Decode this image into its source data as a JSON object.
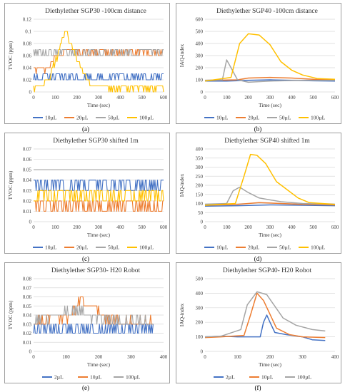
{
  "colors": {
    "blue": "#4472C4",
    "orange": "#ED7D31",
    "gray": "#A5A5A5",
    "yellow": "#FFC000",
    "grid": "#d9d9d9"
  },
  "captions": [
    "(a)",
    "(b)",
    "(c)",
    "(d)",
    "(e)",
    "(f)"
  ],
  "chart_data": [
    {
      "type": "line",
      "title": "Diethylether SGP30 -100cm distance",
      "xlabel": "Time (sec)",
      "ylabel": "TVOC (ppm)",
      "xlim": [
        0,
        600
      ],
      "ylim": [
        0,
        0.12
      ],
      "xticks": [
        0,
        100,
        200,
        300,
        400,
        500,
        600
      ],
      "yticks": [
        0,
        0.02,
        0.04,
        0.06,
        0.08,
        0.1,
        0.12
      ],
      "ytick_labels": [
        "0",
        "0.02",
        "0.04",
        "0.06",
        "0.08",
        "0.1",
        "0.12"
      ],
      "grid": true,
      "legend": "bottom",
      "series": [
        {
          "name": "10µL",
          "color": "blue",
          "style": "noisy",
          "x": [
            0,
            600
          ],
          "levels": [
            0.02,
            0.03
          ],
          "anchors": [
            [
              0,
              0.025
            ],
            [
              600,
              0.025
            ]
          ]
        },
        {
          "name": "20µL",
          "color": "orange",
          "style": "noisy",
          "x": [
            0,
            600
          ],
          "levels": [
            0.06,
            0.07
          ],
          "anchors": [
            [
              0,
              0.035
            ],
            [
              70,
              0.04
            ],
            [
              100,
              0.055
            ],
            [
              130,
              0.065
            ],
            [
              160,
              0.07
            ],
            [
              240,
              0.065
            ],
            [
              600,
              0.065
            ]
          ]
        },
        {
          "name": "50µL",
          "color": "gray",
          "style": "noisy",
          "x": [
            0,
            600
          ],
          "levels": [
            0.06,
            0.07
          ],
          "anchors": [
            [
              0,
              0.065
            ],
            [
              600,
              0.065
            ]
          ]
        },
        {
          "name": "100µL",
          "color": "yellow",
          "style": "noisy",
          "x": [
            0,
            600
          ],
          "levels": [
            0,
            0.01
          ],
          "anchors": [
            [
              0,
              0.005
            ],
            [
              70,
              0.02
            ],
            [
              110,
              0.06
            ],
            [
              145,
              0.1
            ],
            [
              170,
              0.08
            ],
            [
              220,
              0.04
            ],
            [
              260,
              0.01
            ],
            [
              600,
              0.005
            ]
          ]
        }
      ]
    },
    {
      "type": "line",
      "title": "Diethylether SGP40 -100cm distance",
      "xlabel": "Time (sec)",
      "ylabel": "IAQ-index",
      "xlim": [
        0,
        600
      ],
      "ylim": [
        0,
        600
      ],
      "xticks": [
        0,
        100,
        200,
        300,
        400,
        500,
        600
      ],
      "yticks": [
        0,
        100,
        200,
        300,
        400,
        500,
        600
      ],
      "ytick_labels": [
        "0",
        "100",
        "200",
        "300",
        "400",
        "500",
        "600"
      ],
      "grid": true,
      "legend": "bottom",
      "series": [
        {
          "name": "10µL",
          "color": "blue",
          "style": "smooth",
          "points": [
            [
              0,
              90
            ],
            [
              100,
              90
            ],
            [
              200,
              95
            ],
            [
              300,
              100
            ],
            [
              400,
              95
            ],
            [
              500,
              92
            ],
            [
              600,
              90
            ]
          ]
        },
        {
          "name": "20µL",
          "color": "orange",
          "style": "smooth",
          "points": [
            [
              0,
              95
            ],
            [
              150,
              100
            ],
            [
              200,
              115
            ],
            [
              300,
              120
            ],
            [
              400,
              115
            ],
            [
              500,
              105
            ],
            [
              600,
              100
            ]
          ]
        },
        {
          "name": "50µL",
          "color": "gray",
          "style": "smooth",
          "points": [
            [
              0,
              95
            ],
            [
              80,
              100
            ],
            [
              100,
              265
            ],
            [
              120,
              200
            ],
            [
              150,
              100
            ],
            [
              200,
              80
            ],
            [
              300,
              90
            ],
            [
              450,
              95
            ],
            [
              600,
              95
            ]
          ]
        },
        {
          "name": "100µL",
          "color": "yellow",
          "style": "smooth",
          "points": [
            [
              0,
              90
            ],
            [
              120,
              120
            ],
            [
              160,
              400
            ],
            [
              200,
              480
            ],
            [
              250,
              470
            ],
            [
              300,
              390
            ],
            [
              350,
              250
            ],
            [
              400,
              180
            ],
            [
              450,
              140
            ],
            [
              520,
              110
            ],
            [
              600,
              105
            ]
          ]
        }
      ]
    },
    {
      "type": "line",
      "title": "Diethylether SGP30 shifted 1m",
      "xlabel": "Time (sec)",
      "ylabel": "TVOC (ppm)",
      "xlim": [
        0,
        600
      ],
      "ylim": [
        0,
        0.07
      ],
      "xticks": [
        0,
        100,
        200,
        300,
        400,
        500,
        600
      ],
      "yticks": [
        0,
        0.01,
        0.02,
        0.03,
        0.04,
        0.05,
        0.06,
        0.07
      ],
      "ytick_labels": [
        "0",
        "0.01",
        "0.02",
        "0.03",
        "0.04",
        "0.05",
        "0.06",
        "0.07"
      ],
      "grid": true,
      "legend": "bottom",
      "series": [
        {
          "name": "10µL",
          "color": "blue",
          "style": "noisy",
          "x": [
            0,
            600
          ],
          "levels": [
            0.03,
            0.04
          ],
          "anchors": [
            [
              0,
              0.035
            ],
            [
              600,
              0.035
            ]
          ]
        },
        {
          "name": "20µL",
          "color": "orange",
          "style": "noisy",
          "x": [
            0,
            600
          ],
          "levels": [
            0.01,
            0.02
          ],
          "anchors": [
            [
              0,
              0.015
            ],
            [
              600,
              0.015
            ]
          ]
        },
        {
          "name": "50µL",
          "color": "gray",
          "style": "noisy",
          "x": [
            0,
            600
          ],
          "levels": [
            0.05,
            0.06
          ],
          "anchors": [
            [
              0,
              0.05
            ],
            [
              600,
              0.05
            ]
          ]
        },
        {
          "name": "100µL",
          "color": "yellow",
          "style": "noisy",
          "x": [
            0,
            600
          ],
          "levels": [
            0.02,
            0.03
          ],
          "anchors": [
            [
              0,
              0.025
            ],
            [
              600,
              0.025
            ]
          ]
        }
      ]
    },
    {
      "type": "line",
      "title": "Diethylether SGP40 shifted 1m",
      "xlabel": "Time (sec)",
      "ylabel": "IAQ-index",
      "xlim": [
        0,
        600
      ],
      "ylim": [
        0,
        400
      ],
      "xticks": [
        0,
        100,
        200,
        300,
        400,
        500,
        600
      ],
      "yticks": [
        0,
        50,
        100,
        150,
        200,
        250,
        300,
        350,
        400
      ],
      "ytick_labels": [
        "0",
        "50",
        "100",
        "150",
        "200",
        "250",
        "300",
        "350",
        "400"
      ],
      "grid": true,
      "legend": "bottom",
      "series": [
        {
          "name": "10µL",
          "color": "blue",
          "style": "smooth",
          "points": [
            [
              0,
              85
            ],
            [
              150,
              88
            ],
            [
              300,
              92
            ],
            [
              450,
              90
            ],
            [
              600,
              88
            ]
          ]
        },
        {
          "name": "20µL",
          "color": "orange",
          "style": "smooth",
          "points": [
            [
              0,
              90
            ],
            [
              150,
              95
            ],
            [
              250,
              105
            ],
            [
              350,
              100
            ],
            [
              450,
              95
            ],
            [
              600,
              92
            ]
          ]
        },
        {
          "name": "50µL",
          "color": "gray",
          "style": "smooth",
          "points": [
            [
              0,
              95
            ],
            [
              100,
              100
            ],
            [
              130,
              170
            ],
            [
              160,
              190
            ],
            [
              200,
              160
            ],
            [
              250,
              130
            ],
            [
              350,
              110
            ],
            [
              450,
              100
            ],
            [
              600,
              95
            ]
          ]
        },
        {
          "name": "100µL",
          "color": "yellow",
          "style": "smooth",
          "points": [
            [
              0,
              90
            ],
            [
              140,
              100
            ],
            [
              180,
              250
            ],
            [
              210,
              370
            ],
            [
              240,
              365
            ],
            [
              280,
              320
            ],
            [
              330,
              220
            ],
            [
              380,
              175
            ],
            [
              430,
              130
            ],
            [
              480,
              105
            ],
            [
              600,
              95
            ]
          ]
        }
      ]
    },
    {
      "type": "line",
      "title": "Diethylether SGP30- H20 Robot",
      "xlabel": "Time (sec)",
      "ylabel": "TVOC (ppm)",
      "xlim": [
        0,
        400
      ],
      "ylim": [
        0,
        0.08
      ],
      "xticks": [
        0,
        100,
        200,
        300,
        400
      ],
      "yticks": [
        0,
        0.01,
        0.02,
        0.03,
        0.04,
        0.05,
        0.06,
        0.07,
        0.08
      ],
      "ytick_labels": [
        "0",
        "0.01",
        "0.02",
        "0.03",
        "0.04",
        "0.05",
        "0.06",
        "0.07",
        "0.08"
      ],
      "grid": true,
      "legend": "bottom",
      "series": [
        {
          "name": "2µL",
          "color": "blue",
          "style": "noisy",
          "x": [
            0,
            370
          ],
          "levels": [
            0.02,
            0.03
          ],
          "anchors": [
            [
              0,
              0.025
            ],
            [
              360,
              0.025
            ]
          ]
        },
        {
          "name": "10µL",
          "color": "orange",
          "style": "noisy",
          "x": [
            0,
            370
          ],
          "levels": [
            0.03,
            0.04
          ],
          "anchors": [
            [
              0,
              0.035
            ],
            [
              120,
              0.04
            ],
            [
              145,
              0.06
            ],
            [
              170,
              0.05
            ],
            [
              230,
              0.035
            ],
            [
              370,
              0.03
            ]
          ]
        },
        {
          "name": "100µL",
          "color": "gray",
          "style": "noisy",
          "x": [
            0,
            370
          ],
          "levels": [
            0.03,
            0.04
          ],
          "anchors": [
            [
              0,
              0.035
            ],
            [
              150,
              0.045
            ],
            [
              200,
              0.035
            ],
            [
              370,
              0.03
            ]
          ]
        }
      ]
    },
    {
      "type": "line",
      "title": "Diethylether SGP40- H20 Robot",
      "xlabel": "Time (sec)",
      "ylabel": "IAQ-index",
      "xlim": [
        0,
        400
      ],
      "ylim": [
        0,
        500
      ],
      "xticks": [
        0,
        100,
        200,
        300,
        400
      ],
      "yticks": [
        0,
        100,
        200,
        300,
        400,
        500
      ],
      "ytick_labels": [
        "0",
        "100",
        "200",
        "300",
        "400",
        "500"
      ],
      "grid": true,
      "legend": "bottom",
      "series": [
        {
          "name": "2µL",
          "color": "blue",
          "style": "smooth",
          "points": [
            [
              0,
              100
            ],
            [
              50,
              105
            ],
            [
              100,
              100
            ],
            [
              170,
              100
            ],
            [
              180,
              200
            ],
            [
              190,
              250
            ],
            [
              200,
              200
            ],
            [
              215,
              130
            ],
            [
              250,
              115
            ],
            [
              300,
              100
            ],
            [
              330,
              80
            ],
            [
              370,
              75
            ]
          ]
        },
        {
          "name": "10µL",
          "color": "orange",
          "style": "smooth",
          "points": [
            [
              0,
              95
            ],
            [
              50,
              100
            ],
            [
              120,
              110
            ],
            [
              140,
              250
            ],
            [
              160,
              400
            ],
            [
              180,
              350
            ],
            [
              220,
              160
            ],
            [
              260,
              115
            ],
            [
              300,
              100
            ],
            [
              370,
              95
            ]
          ]
        },
        {
          "name": "100µL",
          "color": "gray",
          "style": "smooth",
          "points": [
            [
              0,
              100
            ],
            [
              50,
              105
            ],
            [
              110,
              150
            ],
            [
              130,
              320
            ],
            [
              160,
              410
            ],
            [
              190,
              390
            ],
            [
              240,
              230
            ],
            [
              280,
              180
            ],
            [
              330,
              150
            ],
            [
              370,
              140
            ]
          ]
        }
      ]
    }
  ]
}
